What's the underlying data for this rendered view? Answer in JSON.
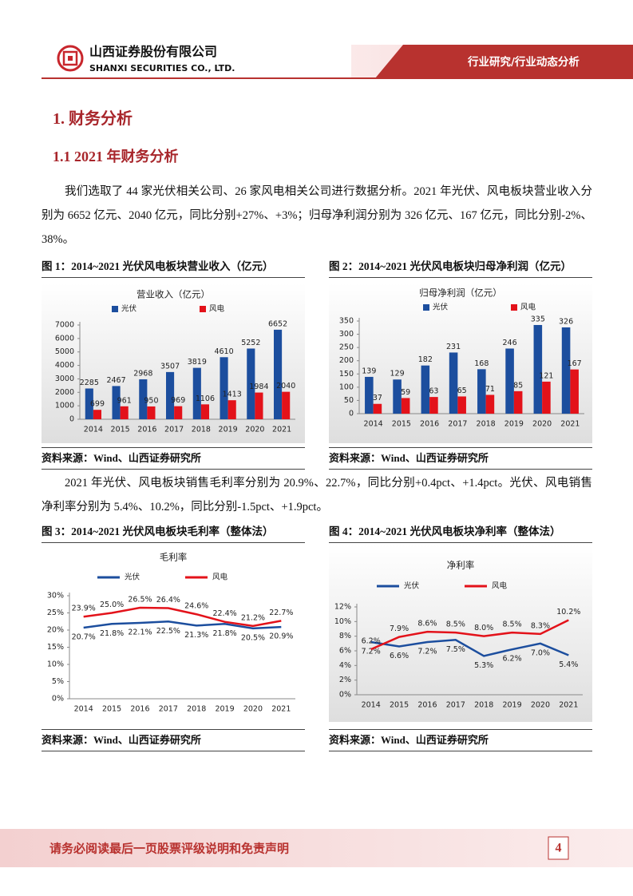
{
  "header": {
    "company_cn": "山西证券股份有限公司",
    "company_en": "SHANXI SECURITIES CO., LTD.",
    "section": "行业研究/行业动态分析"
  },
  "heading1": "1. 财务分析",
  "heading2": "1.1  2021 年财务分析",
  "paragraphs": [
    "我们选取了 44 家光伏相关公司、26 家风电相关公司进行数据分析。2021 年光伏、风电板块营业收入分别为 6652 亿元、2040 亿元，同比分别+27%、+3%；归母净利润分别为 326 亿元、167 亿元，同比分别-2%、38%。",
    "2021 年光伏、风电板块销售毛利率分别为 20.9%、22.7%，同比分别+0.4pct、+1.4pct。光伏、风电销售净利率分别为 5.4%、10.2%，同比分别-1.5pct、+1.9pct。"
  ],
  "figures": [
    {
      "caption": "图 1：2014~2021 光伏风电板块营业收入（亿元）",
      "source": "资料来源：Wind、山西证券研究所"
    },
    {
      "caption": "图 2：2014~2021 光伏风电板块归母净利润（亿元）",
      "source": "资料来源：Wind、山西证券研究所"
    },
    {
      "caption": "图 3：2014~2021 光伏风电板块毛利率（整体法）",
      "source": "资料来源：Wind、山西证券研究所"
    },
    {
      "caption": "图 4：2014~2021 光伏风电板块净利率（整体法）",
      "source": "资料来源：Wind、山西证券研究所"
    }
  ],
  "chart_data": [
    {
      "type": "bar",
      "title": "营业收入（亿元）",
      "categories": [
        "2014",
        "2015",
        "2016",
        "2017",
        "2018",
        "2019",
        "2020",
        "2021"
      ],
      "series": [
        {
          "name": "光伏",
          "color": "#1c4e9e",
          "values": [
            2285,
            2467,
            2968,
            3507,
            3819,
            4610,
            5252,
            6652
          ]
        },
        {
          "name": "风电",
          "color": "#e3121a",
          "values": [
            699,
            961,
            950,
            969,
            1106,
            1413,
            1984,
            2040
          ]
        }
      ],
      "ylim": [
        0,
        7000
      ],
      "yticks": [
        0,
        1000,
        2000,
        3000,
        4000,
        5000,
        6000,
        7000
      ],
      "grid": false
    },
    {
      "type": "bar",
      "title": "归母净利润（亿元）",
      "categories": [
        "2014",
        "2015",
        "2016",
        "2017",
        "2018",
        "2019",
        "2020",
        "2021"
      ],
      "series": [
        {
          "name": "光伏",
          "color": "#1c4e9e",
          "values": [
            139,
            129,
            182,
            231,
            168,
            246,
            335,
            326
          ]
        },
        {
          "name": "风电",
          "color": "#e3121a",
          "values": [
            37,
            59,
            63,
            65,
            71,
            85,
            121,
            167
          ]
        }
      ],
      "ylim": [
        0,
        350
      ],
      "yticks": [
        0,
        50,
        100,
        150,
        200,
        250,
        300,
        350
      ],
      "grid": false
    },
    {
      "type": "line",
      "title": "毛利率",
      "categories": [
        "2014",
        "2015",
        "2016",
        "2017",
        "2018",
        "2019",
        "2020",
        "2021"
      ],
      "series": [
        {
          "name": "光伏",
          "color": "#1c4e9e",
          "values": [
            20.7,
            21.8,
            22.1,
            22.5,
            21.3,
            21.8,
            20.5,
            20.9
          ],
          "value_labels": [
            "20.7%",
            "21.8%",
            "22.1%",
            "22.5%",
            "21.3%",
            "21.8%",
            "20.5%",
            "20.9%"
          ]
        },
        {
          "name": "风电",
          "color": "#e3121a",
          "values": [
            23.9,
            25.0,
            26.5,
            26.4,
            24.6,
            22.4,
            21.2,
            22.7
          ],
          "value_labels": [
            "23.9%",
            "25.0%",
            "26.5%",
            "26.4%",
            "24.6%",
            "22.4%",
            "21.2%",
            "22.7%"
          ]
        }
      ],
      "ylim": [
        0,
        30
      ],
      "yticks": [
        {
          "value": 0,
          "label": "0%"
        },
        {
          "value": 5,
          "label": "5%"
        },
        {
          "value": 10,
          "label": "10%"
        },
        {
          "value": 15,
          "label": "15%"
        },
        {
          "value": 20,
          "label": "20%"
        },
        {
          "value": 25,
          "label": "25%"
        },
        {
          "value": 30,
          "label": "30%"
        }
      ],
      "grid": false
    },
    {
      "type": "line",
      "title": "净利率",
      "categories": [
        "2014",
        "2015",
        "2016",
        "2017",
        "2018",
        "2019",
        "2020",
        "2021"
      ],
      "series": [
        {
          "name": "光伏",
          "color": "#1c4e9e",
          "values": [
            7.2,
            6.6,
            7.2,
            7.5,
            5.3,
            6.2,
            7.0,
            5.4
          ],
          "value_labels": [
            "7.2%",
            "6.6%",
            "7.2%",
            "7.5%",
            "5.3%",
            "6.2%",
            "7.0%",
            "5.4%"
          ]
        },
        {
          "name": "风电",
          "color": "#e3121a",
          "values": [
            6.2,
            7.9,
            8.6,
            8.5,
            8.0,
            8.5,
            8.3,
            10.2
          ],
          "value_labels": [
            "6.2%",
            "7.9%",
            "8.6%",
            "8.5%",
            "8.0%",
            "8.5%",
            "8.3%",
            "10.2%"
          ]
        }
      ],
      "ylim": [
        0,
        12
      ],
      "yticks": [
        {
          "value": 0,
          "label": "0%"
        },
        {
          "value": 2,
          "label": "2%"
        },
        {
          "value": 4,
          "label": "4%"
        },
        {
          "value": 6,
          "label": "6%"
        },
        {
          "value": 8,
          "label": "8%"
        },
        {
          "value": 10,
          "label": "10%"
        },
        {
          "value": 12,
          "label": "12%"
        }
      ],
      "grid": false
    }
  ],
  "footer": {
    "notice": "请务必阅读最后一页股票评级说明和免责声明",
    "page": "4"
  }
}
